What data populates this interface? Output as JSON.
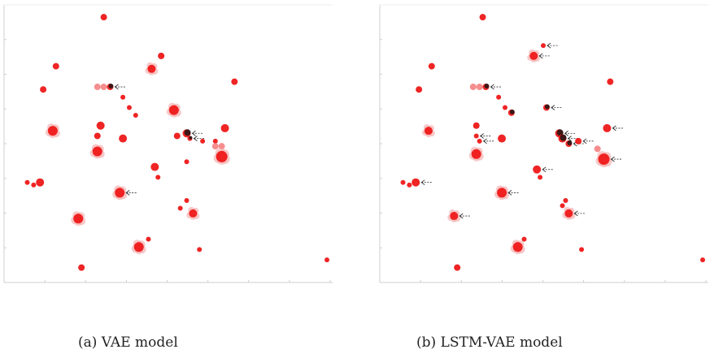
{
  "captions": {
    "a": "(a) VAE model",
    "b": "(b) LSTM-VAE model"
  },
  "colors": {
    "point": "#ee1111",
    "point_light": "#f47a7a",
    "ghost": "#f6b6b6",
    "marked": "#111111",
    "arrow": "#333333",
    "axis": "#cfcfcf"
  },
  "chart_data": [
    {
      "type": "scatter",
      "title": "",
      "xlabel": "",
      "ylabel": "",
      "xlim": [
        0,
        100
      ],
      "ylim": [
        0,
        100
      ],
      "grid": false,
      "tick_labels": false,
      "points": [
        {
          "x": 30,
          "y": 99,
          "r": 4,
          "shade": "solid"
        },
        {
          "x": 15,
          "y": 80,
          "r": 4,
          "shade": "solid"
        },
        {
          "x": 48,
          "y": 84,
          "r": 4,
          "shade": "solid"
        },
        {
          "x": 71,
          "y": 74,
          "r": 4,
          "shade": "solid"
        },
        {
          "x": 45,
          "y": 79,
          "r": 5,
          "shade": "cluster"
        },
        {
          "x": 11,
          "y": 71,
          "r": 4,
          "shade": "solid"
        },
        {
          "x": 28,
          "y": 72,
          "r": 4,
          "shade": "light"
        },
        {
          "x": 30,
          "y": 72,
          "r": 4,
          "shade": "light"
        },
        {
          "x": 32,
          "y": 72,
          "r": 4,
          "shade": "marked",
          "arrow": true
        },
        {
          "x": 36,
          "y": 68,
          "r": 3,
          "shade": "solid"
        },
        {
          "x": 38,
          "y": 64,
          "r": 3,
          "shade": "solid"
        },
        {
          "x": 40,
          "y": 61,
          "r": 3,
          "shade": "solid"
        },
        {
          "x": 52,
          "y": 63,
          "r": 6,
          "shade": "cluster"
        },
        {
          "x": 14,
          "y": 55,
          "r": 6,
          "shade": "cluster"
        },
        {
          "x": 29,
          "y": 57,
          "r": 5,
          "shade": "solid"
        },
        {
          "x": 28,
          "y": 53,
          "r": 4,
          "shade": "solid"
        },
        {
          "x": 28,
          "y": 47,
          "r": 6,
          "shade": "cluster"
        },
        {
          "x": 36,
          "y": 52,
          "r": 5,
          "shade": "solid"
        },
        {
          "x": 53,
          "y": 53,
          "r": 4,
          "shade": "solid"
        },
        {
          "x": 56,
          "y": 54,
          "r": 5,
          "shade": "marked",
          "arrow": true
        },
        {
          "x": 57,
          "y": 52,
          "r": 3,
          "shade": "marked",
          "arrow": true
        },
        {
          "x": 61,
          "y": 51,
          "r": 3,
          "shade": "solid"
        },
        {
          "x": 65,
          "y": 51,
          "r": 3,
          "shade": "solid"
        },
        {
          "x": 68,
          "y": 56,
          "r": 5,
          "shade": "solid"
        },
        {
          "x": 65,
          "y": 49,
          "r": 4,
          "shade": "light"
        },
        {
          "x": 67,
          "y": 49,
          "r": 4,
          "shade": "light"
        },
        {
          "x": 67,
          "y": 45,
          "r": 7,
          "shade": "cluster"
        },
        {
          "x": 46,
          "y": 41,
          "r": 5,
          "shade": "solid"
        },
        {
          "x": 47,
          "y": 37,
          "r": 3,
          "shade": "solid"
        },
        {
          "x": 56,
          "y": 43,
          "r": 3,
          "shade": "solid"
        },
        {
          "x": 6,
          "y": 35,
          "r": 3,
          "shade": "solid"
        },
        {
          "x": 8,
          "y": 34,
          "r": 3,
          "shade": "solid"
        },
        {
          "x": 10,
          "y": 35,
          "r": 5,
          "shade": "solid"
        },
        {
          "x": 35,
          "y": 31,
          "r": 6,
          "shade": "cluster",
          "arrow": true
        },
        {
          "x": 56,
          "y": 28,
          "r": 3,
          "shade": "solid"
        },
        {
          "x": 54,
          "y": 25,
          "r": 3,
          "shade": "solid"
        },
        {
          "x": 58,
          "y": 23,
          "r": 5,
          "shade": "cluster"
        },
        {
          "x": 22,
          "y": 21,
          "r": 6,
          "shade": "cluster"
        },
        {
          "x": 44,
          "y": 13,
          "r": 3,
          "shade": "solid"
        },
        {
          "x": 41,
          "y": 10,
          "r": 6,
          "shade": "cluster"
        },
        {
          "x": 60,
          "y": 9,
          "r": 3,
          "shade": "solid"
        },
        {
          "x": 23,
          "y": 2,
          "r": 4,
          "shade": "solid"
        },
        {
          "x": 100,
          "y": 5,
          "r": 3,
          "shade": "solid"
        }
      ]
    },
    {
      "type": "scatter",
      "title": "",
      "xlabel": "",
      "ylabel": "",
      "xlim": [
        0,
        100
      ],
      "ylim": [
        0,
        100
      ],
      "grid": false,
      "tick_labels": false,
      "points": [
        {
          "x": 31,
          "y": 99,
          "r": 4,
          "shade": "solid"
        },
        {
          "x": 50,
          "y": 88,
          "r": 3,
          "shade": "solid",
          "arrow": true
        },
        {
          "x": 47,
          "y": 84,
          "r": 5,
          "shade": "cluster",
          "arrow": true
        },
        {
          "x": 15,
          "y": 80,
          "r": 4,
          "shade": "solid"
        },
        {
          "x": 71,
          "y": 74,
          "r": 4,
          "shade": "solid"
        },
        {
          "x": 11,
          "y": 71,
          "r": 4,
          "shade": "solid"
        },
        {
          "x": 28,
          "y": 72,
          "r": 4,
          "shade": "light"
        },
        {
          "x": 30,
          "y": 72,
          "r": 4,
          "shade": "light"
        },
        {
          "x": 32,
          "y": 72,
          "r": 4,
          "shade": "marked",
          "arrow": true
        },
        {
          "x": 36,
          "y": 68,
          "r": 3,
          "shade": "solid"
        },
        {
          "x": 38,
          "y": 64,
          "r": 3,
          "shade": "solid"
        },
        {
          "x": 40,
          "y": 62,
          "r": 4,
          "shade": "marked"
        },
        {
          "x": 51,
          "y": 64,
          "r": 4,
          "shade": "marked",
          "arrow": true
        },
        {
          "x": 29,
          "y": 57,
          "r": 4,
          "shade": "solid"
        },
        {
          "x": 14,
          "y": 55,
          "r": 5,
          "shade": "cluster"
        },
        {
          "x": 29,
          "y": 53,
          "r": 3,
          "shade": "solid",
          "arrow": true
        },
        {
          "x": 30,
          "y": 51,
          "r": 3,
          "shade": "solid",
          "arrow": true
        },
        {
          "x": 37,
          "y": 52,
          "r": 5,
          "shade": "solid"
        },
        {
          "x": 55,
          "y": 54,
          "r": 5,
          "shade": "marked",
          "arrow": true
        },
        {
          "x": 56,
          "y": 52,
          "r": 5,
          "shade": "marked",
          "arrow": true
        },
        {
          "x": 58,
          "y": 50,
          "r": 4,
          "shade": "marked",
          "arrow": true
        },
        {
          "x": 61,
          "y": 51,
          "r": 4,
          "shade": "solid",
          "arrow": true
        },
        {
          "x": 70,
          "y": 56,
          "r": 5,
          "shade": "solid",
          "arrow": true
        },
        {
          "x": 67,
          "y": 48,
          "r": 4,
          "shade": "light"
        },
        {
          "x": 29,
          "y": 46,
          "r": 6,
          "shade": "cluster"
        },
        {
          "x": 69,
          "y": 44,
          "r": 7,
          "shade": "cluster",
          "arrow": true
        },
        {
          "x": 48,
          "y": 40,
          "r": 5,
          "shade": "solid",
          "arrow": true
        },
        {
          "x": 49,
          "y": 37,
          "r": 3,
          "shade": "solid"
        },
        {
          "x": 6,
          "y": 35,
          "r": 3,
          "shade": "solid"
        },
        {
          "x": 8,
          "y": 34,
          "r": 3,
          "shade": "solid"
        },
        {
          "x": 10,
          "y": 35,
          "r": 5,
          "shade": "solid",
          "arrow": true
        },
        {
          "x": 37,
          "y": 31,
          "r": 6,
          "shade": "cluster",
          "arrow": true
        },
        {
          "x": 57,
          "y": 28,
          "r": 3,
          "shade": "solid"
        },
        {
          "x": 56,
          "y": 26,
          "r": 3,
          "shade": "solid"
        },
        {
          "x": 58,
          "y": 23,
          "r": 5,
          "shade": "cluster",
          "arrow": true
        },
        {
          "x": 22,
          "y": 22,
          "r": 5,
          "shade": "cluster",
          "arrow": true
        },
        {
          "x": 44,
          "y": 13,
          "r": 3,
          "shade": "solid"
        },
        {
          "x": 42,
          "y": 10,
          "r": 6,
          "shade": "cluster"
        },
        {
          "x": 62,
          "y": 9,
          "r": 3,
          "shade": "solid"
        },
        {
          "x": 23,
          "y": 2,
          "r": 4,
          "shade": "solid"
        },
        {
          "x": 100,
          "y": 5,
          "r": 3,
          "shade": "solid"
        }
      ]
    }
  ]
}
